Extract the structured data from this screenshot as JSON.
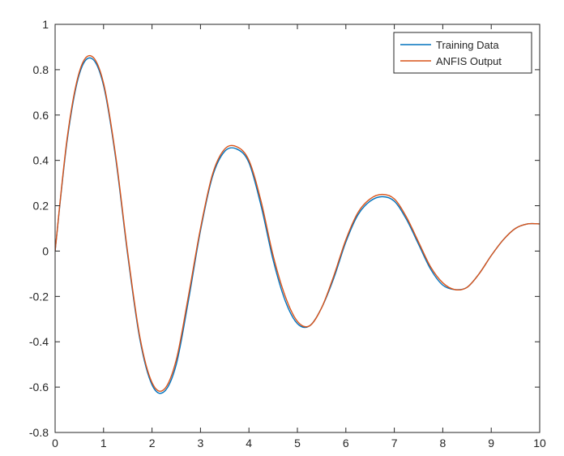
{
  "chart_data": {
    "type": "line",
    "title": "",
    "xlabel": "",
    "ylabel": "",
    "xlim": [
      0,
      10
    ],
    "ylim": [
      -0.8,
      1
    ],
    "grid": false,
    "legend_position": "top-right",
    "x_ticks": [
      0,
      1,
      2,
      3,
      4,
      5,
      6,
      7,
      8,
      9,
      10
    ],
    "x_tick_labels": [
      "0",
      "1",
      "2",
      "3",
      "4",
      "5",
      "6",
      "7",
      "8",
      "9",
      "10"
    ],
    "y_ticks": [
      -0.8,
      -0.6,
      -0.4,
      -0.2,
      0,
      0.2,
      0.4,
      0.6,
      0.8,
      1
    ],
    "y_tick_labels": [
      "-0.8",
      "-0.6",
      "-0.4",
      "-0.2",
      "0",
      "0.2",
      "0.4",
      "0.6",
      "0.8",
      "1"
    ],
    "series": [
      {
        "name": "Training Data",
        "color": "#0072BD",
        "x": [
          0,
          0.25,
          0.5,
          0.75,
          1,
          1.25,
          1.5,
          1.75,
          2,
          2.25,
          2.5,
          2.75,
          3,
          3.25,
          3.5,
          3.75,
          4,
          4.25,
          4.5,
          4.75,
          5,
          5.25,
          5.5,
          5.75,
          6,
          6.25,
          6.5,
          6.75,
          7,
          7.25,
          7.5,
          7.75,
          8,
          8.25,
          8.5,
          8.75,
          9,
          9.25,
          9.5,
          9.75,
          10
        ],
        "y": [
          0,
          0.49,
          0.78,
          0.85,
          0.73,
          0.41,
          -0.02,
          -0.39,
          -0.59,
          -0.62,
          -0.5,
          -0.22,
          0.09,
          0.33,
          0.44,
          0.45,
          0.39,
          0.2,
          -0.04,
          -0.22,
          -0.32,
          -0.33,
          -0.25,
          -0.12,
          0.04,
          0.16,
          0.22,
          0.24,
          0.22,
          0.14,
          0.03,
          -0.08,
          -0.15,
          -0.17,
          -0.16,
          -0.1,
          -0.02,
          0.05,
          0.1,
          0.12,
          0.12
        ]
      },
      {
        "name": "ANFIS Output",
        "color": "#D95319",
        "x": [
          0,
          0.25,
          0.5,
          0.75,
          1,
          1.25,
          1.5,
          1.75,
          2,
          2.25,
          2.5,
          2.75,
          3,
          3.25,
          3.5,
          3.75,
          4,
          4.25,
          4.5,
          4.75,
          5,
          5.25,
          5.5,
          5.75,
          6,
          6.25,
          6.5,
          6.75,
          7,
          7.25,
          7.5,
          7.75,
          8,
          8.25,
          8.5,
          8.75,
          9,
          9.25,
          9.5,
          9.75,
          10
        ],
        "y": [
          0,
          0.5,
          0.79,
          0.86,
          0.74,
          0.42,
          -0.01,
          -0.38,
          -0.58,
          -0.61,
          -0.48,
          -0.2,
          0.1,
          0.34,
          0.45,
          0.46,
          0.4,
          0.22,
          -0.02,
          -0.2,
          -0.31,
          -0.33,
          -0.25,
          -0.11,
          0.05,
          0.17,
          0.23,
          0.25,
          0.23,
          0.15,
          0.04,
          -0.07,
          -0.14,
          -0.17,
          -0.16,
          -0.1,
          -0.02,
          0.05,
          0.1,
          0.12,
          0.12
        ]
      }
    ]
  }
}
